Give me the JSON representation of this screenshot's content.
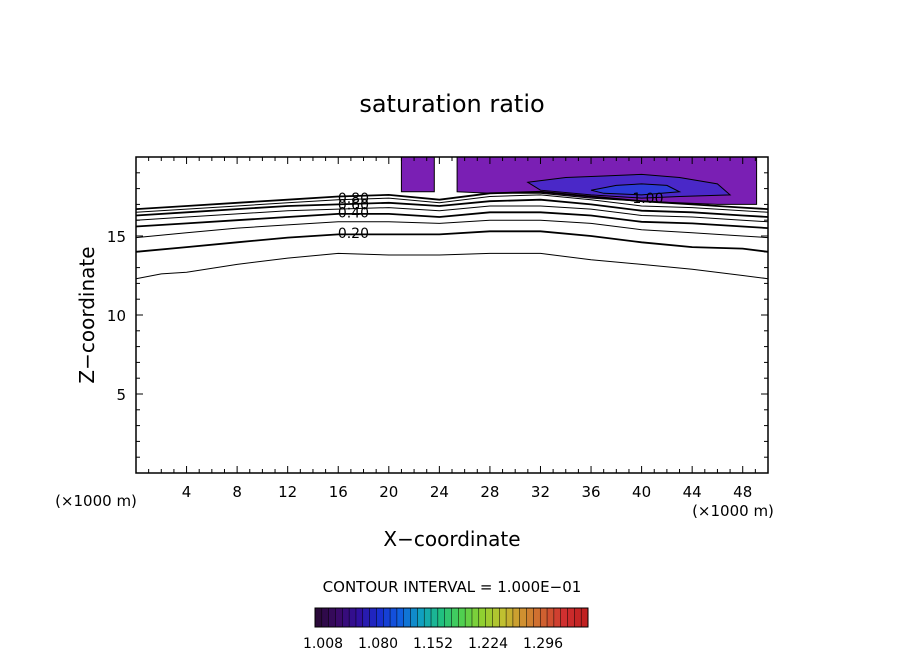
{
  "chart_data": {
    "type": "contour",
    "title": "saturation ratio",
    "xlabel": "X−coordinate",
    "ylabel": "Z−coordinate",
    "x_unit_left": "(×1000 m)",
    "x_unit_right": "(×1000 m)",
    "xlim": [
      0,
      50
    ],
    "ylim": [
      0,
      20
    ],
    "x_ticks": [
      4,
      8,
      12,
      16,
      20,
      24,
      28,
      32,
      36,
      40,
      44,
      48
    ],
    "y_ticks": [
      5,
      10,
      15
    ],
    "contour_interval_text": "CONTOUR INTERVAL = 1.000E−01",
    "contour_labels": [
      {
        "text": "0.80",
        "x": 17.2,
        "y": 17.4
      },
      {
        "text": "0.60",
        "x": 17.2,
        "y": 17.0
      },
      {
        "text": "0.40",
        "x": 17.2,
        "y": 16.5
      },
      {
        "text": "0.20",
        "x": 17.2,
        "y": 15.2
      },
      {
        "text": "1.00",
        "x": 40.5,
        "y": 17.4
      }
    ],
    "contour_lines": [
      {
        "level": 0.1,
        "points": [
          [
            0,
            12.3
          ],
          [
            2,
            12.6
          ],
          [
            4,
            12.7
          ],
          [
            8,
            13.2
          ],
          [
            12,
            13.6
          ],
          [
            16,
            13.9
          ],
          [
            20,
            13.8
          ],
          [
            24,
            13.8
          ],
          [
            28,
            13.9
          ],
          [
            32,
            13.9
          ],
          [
            36,
            13.5
          ],
          [
            40,
            13.2
          ],
          [
            44,
            12.9
          ],
          [
            48,
            12.5
          ],
          [
            50,
            12.3
          ]
        ]
      },
      {
        "level": 0.2,
        "points": [
          [
            0,
            14.0
          ],
          [
            4,
            14.3
          ],
          [
            8,
            14.6
          ],
          [
            12,
            14.9
          ],
          [
            16,
            15.1
          ],
          [
            20,
            15.1
          ],
          [
            24,
            15.1
          ],
          [
            28,
            15.3
          ],
          [
            32,
            15.3
          ],
          [
            36,
            15.0
          ],
          [
            40,
            14.6
          ],
          [
            44,
            14.3
          ],
          [
            48,
            14.2
          ],
          [
            50,
            14.0
          ]
        ]
      },
      {
        "level": 0.3,
        "points": [
          [
            0,
            14.9
          ],
          [
            4,
            15.2
          ],
          [
            8,
            15.5
          ],
          [
            12,
            15.7
          ],
          [
            16,
            15.9
          ],
          [
            20,
            15.9
          ],
          [
            24,
            15.8
          ],
          [
            28,
            16.0
          ],
          [
            32,
            16.0
          ],
          [
            36,
            15.8
          ],
          [
            40,
            15.4
          ],
          [
            44,
            15.2
          ],
          [
            48,
            15.0
          ],
          [
            50,
            14.9
          ]
        ]
      },
      {
        "level": 0.4,
        "points": [
          [
            0,
            15.6
          ],
          [
            4,
            15.8
          ],
          [
            8,
            16.0
          ],
          [
            12,
            16.2
          ],
          [
            16,
            16.4
          ],
          [
            20,
            16.4
          ],
          [
            24,
            16.2
          ],
          [
            28,
            16.5
          ],
          [
            32,
            16.5
          ],
          [
            36,
            16.3
          ],
          [
            40,
            15.9
          ],
          [
            44,
            15.8
          ],
          [
            48,
            15.6
          ],
          [
            50,
            15.5
          ]
        ]
      },
      {
        "level": 0.5,
        "points": [
          [
            0,
            16.0
          ],
          [
            4,
            16.2
          ],
          [
            8,
            16.4
          ],
          [
            12,
            16.6
          ],
          [
            16,
            16.7
          ],
          [
            20,
            16.8
          ],
          [
            24,
            16.6
          ],
          [
            28,
            16.9
          ],
          [
            32,
            16.9
          ],
          [
            36,
            16.7
          ],
          [
            40,
            16.3
          ],
          [
            44,
            16.2
          ],
          [
            48,
            16.0
          ],
          [
            50,
            15.9
          ]
        ]
      },
      {
        "level": 0.6,
        "points": [
          [
            0,
            16.3
          ],
          [
            4,
            16.5
          ],
          [
            8,
            16.7
          ],
          [
            12,
            16.9
          ],
          [
            16,
            17.0
          ],
          [
            20,
            17.1
          ],
          [
            24,
            16.9
          ],
          [
            28,
            17.2
          ],
          [
            32,
            17.3
          ],
          [
            36,
            17.0
          ],
          [
            40,
            16.6
          ],
          [
            44,
            16.5
          ],
          [
            48,
            16.3
          ],
          [
            50,
            16.2
          ]
        ]
      },
      {
        "level": 0.7,
        "points": [
          [
            0,
            16.5
          ],
          [
            4,
            16.7
          ],
          [
            8,
            16.9
          ],
          [
            12,
            17.1
          ],
          [
            16,
            17.3
          ],
          [
            20,
            17.4
          ],
          [
            24,
            17.1
          ],
          [
            28,
            17.5
          ],
          [
            32,
            17.6
          ],
          [
            36,
            17.3
          ],
          [
            40,
            16.9
          ],
          [
            44,
            16.8
          ],
          [
            48,
            16.6
          ],
          [
            50,
            16.5
          ]
        ]
      },
      {
        "level": 0.8,
        "points": [
          [
            0,
            16.7
          ],
          [
            4,
            16.9
          ],
          [
            8,
            17.1
          ],
          [
            12,
            17.3
          ],
          [
            16,
            17.5
          ],
          [
            20,
            17.6
          ],
          [
            24,
            17.3
          ],
          [
            28,
            17.7
          ],
          [
            32,
            17.8
          ],
          [
            36,
            17.5
          ],
          [
            40,
            17.2
          ],
          [
            44,
            17.0
          ],
          [
            48,
            16.8
          ],
          [
            50,
            16.7
          ]
        ]
      }
    ],
    "filled_regions": [
      {
        "level": 1.0,
        "color": "#7a1fb4",
        "points": [
          [
            21,
            20
          ],
          [
            23.6,
            20
          ],
          [
            23.6,
            17.8
          ],
          [
            21,
            17.8
          ]
        ]
      },
      {
        "level": 1.0,
        "color": "#7a1fb4",
        "points": [
          [
            25.4,
            20
          ],
          [
            49.1,
            20
          ],
          [
            49.1,
            17.0
          ],
          [
            46,
            17.0
          ],
          [
            40,
            17.2
          ],
          [
            36,
            17.4
          ],
          [
            32,
            17.7
          ],
          [
            28,
            17.7
          ],
          [
            25.4,
            17.8
          ]
        ]
      },
      {
        "level": 1.01,
        "color": "#4a28c8",
        "points": [
          [
            31,
            18.4
          ],
          [
            34,
            18.7
          ],
          [
            37,
            18.8
          ],
          [
            40,
            18.9
          ],
          [
            43,
            18.7
          ],
          [
            46,
            18.3
          ],
          [
            47,
            17.6
          ],
          [
            43,
            17.5
          ],
          [
            40,
            17.4
          ],
          [
            36,
            17.6
          ],
          [
            32,
            17.9
          ]
        ]
      },
      {
        "level": 1.02,
        "color": "#2e3ad8",
        "points": [
          [
            36,
            17.9
          ],
          [
            38,
            18.2
          ],
          [
            40,
            18.3
          ],
          [
            42,
            18.2
          ],
          [
            43,
            17.8
          ],
          [
            40,
            17.6
          ],
          [
            37,
            17.7
          ]
        ]
      }
    ],
    "colorbar": {
      "colors": [
        "#2a0a3a",
        "#3a0a6a",
        "#3010a0",
        "#1830d0",
        "#1060e0",
        "#10a0c0",
        "#20c080",
        "#50d050",
        "#90d030",
        "#c0c030",
        "#d09030",
        "#d06030",
        "#d03030",
        "#c02020"
      ],
      "tick_labels": [
        "1.008",
        "1.080",
        "1.152",
        "1.224",
        "1.296"
      ]
    }
  }
}
